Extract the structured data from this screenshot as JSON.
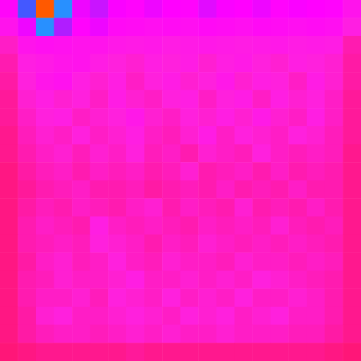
{
  "chart_data": {
    "type": "heatmap",
    "tick_labels": false,
    "zlim": [
      0,
      1
    ],
    "cells": [
      [
        0.26,
        0.45,
        0.95,
        0.5,
        0.3,
        0.33,
        0.29,
        0.27,
        0.3,
        0.28,
        0.27,
        0.31,
        0.29,
        0.28,
        0.3,
        0.27,
        0.29,
        0.28,
        0.27,
        0.2
      ],
      [
        0.2,
        0.3,
        0.5,
        0.35,
        0.27,
        0.3,
        0.24,
        0.23,
        0.22,
        0.23,
        0.22,
        0.24,
        0.23,
        0.22,
        0.24,
        0.23,
        0.22,
        0.23,
        0.22,
        0.15
      ],
      [
        0.12,
        0.2,
        0.22,
        0.21,
        0.2,
        0.2,
        0.18,
        0.17,
        0.18,
        0.16,
        0.17,
        0.18,
        0.17,
        0.16,
        0.17,
        0.18,
        0.16,
        0.17,
        0.16,
        0.1
      ],
      [
        0.1,
        0.15,
        0.17,
        0.19,
        0.2,
        0.16,
        0.14,
        0.13,
        0.15,
        0.14,
        0.16,
        0.13,
        0.15,
        0.17,
        0.14,
        0.13,
        0.15,
        0.14,
        0.13,
        0.09
      ],
      [
        0.09,
        0.14,
        0.19,
        0.21,
        0.15,
        0.13,
        0.15,
        0.12,
        0.14,
        0.16,
        0.13,
        0.14,
        0.18,
        0.13,
        0.15,
        0.14,
        0.12,
        0.16,
        0.13,
        0.09
      ],
      [
        0.08,
        0.13,
        0.15,
        0.13,
        0.14,
        0.12,
        0.16,
        0.13,
        0.12,
        0.14,
        0.15,
        0.12,
        0.14,
        0.16,
        0.12,
        0.15,
        0.13,
        0.14,
        0.12,
        0.08
      ],
      [
        0.08,
        0.12,
        0.14,
        0.15,
        0.12,
        0.13,
        0.14,
        0.18,
        0.13,
        0.12,
        0.14,
        0.13,
        0.15,
        0.13,
        0.17,
        0.13,
        0.12,
        0.15,
        0.12,
        0.08
      ],
      [
        0.07,
        0.11,
        0.13,
        0.12,
        0.14,
        0.12,
        0.13,
        0.15,
        0.12,
        0.11,
        0.13,
        0.16,
        0.12,
        0.14,
        0.13,
        0.12,
        0.14,
        0.13,
        0.11,
        0.08
      ],
      [
        0.07,
        0.1,
        0.12,
        0.13,
        0.11,
        0.13,
        0.12,
        0.14,
        0.11,
        0.12,
        0.1,
        0.13,
        0.12,
        0.11,
        0.14,
        0.12,
        0.11,
        0.12,
        0.11,
        0.07
      ],
      [
        0.06,
        0.09,
        0.11,
        0.12,
        0.1,
        0.12,
        0.11,
        0.12,
        0.1,
        0.11,
        0.13,
        0.1,
        0.11,
        0.12,
        0.1,
        0.12,
        0.1,
        0.11,
        0.1,
        0.07
      ],
      [
        0.06,
        0.08,
        0.1,
        0.11,
        0.12,
        0.1,
        0.1,
        0.11,
        0.09,
        0.1,
        0.11,
        0.1,
        0.12,
        0.1,
        0.11,
        0.1,
        0.12,
        0.1,
        0.1,
        0.07
      ],
      [
        0.06,
        0.09,
        0.11,
        0.1,
        0.12,
        0.11,
        0.1,
        0.12,
        0.13,
        0.1,
        0.12,
        0.11,
        0.1,
        0.13,
        0.1,
        0.11,
        0.1,
        0.12,
        0.1,
        0.07
      ],
      [
        0.06,
        0.1,
        0.12,
        0.11,
        0.1,
        0.15,
        0.12,
        0.11,
        0.12,
        0.11,
        0.1,
        0.12,
        0.11,
        0.12,
        0.11,
        0.13,
        0.11,
        0.1,
        0.11,
        0.07
      ],
      [
        0.06,
        0.1,
        0.11,
        0.12,
        0.11,
        0.14,
        0.13,
        0.12,
        0.1,
        0.12,
        0.11,
        0.13,
        0.12,
        0.11,
        0.12,
        0.11,
        0.12,
        0.11,
        0.1,
        0.07
      ],
      [
        0.06,
        0.09,
        0.12,
        0.13,
        0.11,
        0.12,
        0.14,
        0.12,
        0.11,
        0.13,
        0.12,
        0.12,
        0.11,
        0.13,
        0.12,
        0.12,
        0.11,
        0.12,
        0.11,
        0.07
      ],
      [
        0.06,
        0.1,
        0.11,
        0.13,
        0.12,
        0.12,
        0.13,
        0.15,
        0.12,
        0.12,
        0.13,
        0.12,
        0.13,
        0.12,
        0.14,
        0.13,
        0.12,
        0.11,
        0.1,
        0.07
      ],
      [
        0.06,
        0.1,
        0.12,
        0.12,
        0.13,
        0.11,
        0.14,
        0.13,
        0.12,
        0.14,
        0.12,
        0.13,
        0.12,
        0.14,
        0.12,
        0.12,
        0.13,
        0.12,
        0.1,
        0.07
      ],
      [
        0.06,
        0.09,
        0.13,
        0.14,
        0.12,
        0.12,
        0.13,
        0.14,
        0.13,
        0.12,
        0.14,
        0.13,
        0.14,
        0.12,
        0.13,
        0.14,
        0.12,
        0.12,
        0.1,
        0.07
      ],
      [
        0.06,
        0.09,
        0.11,
        0.12,
        0.12,
        0.11,
        0.12,
        0.13,
        0.12,
        0.13,
        0.12,
        0.12,
        0.13,
        0.12,
        0.12,
        0.12,
        0.11,
        0.11,
        0.09,
        0.07
      ],
      [
        0.05,
        0.06,
        0.07,
        0.07,
        0.07,
        0.07,
        0.07,
        0.08,
        0.07,
        0.07,
        0.07,
        0.07,
        0.07,
        0.07,
        0.07,
        0.07,
        0.07,
        0.07,
        0.06,
        0.05
      ]
    ]
  }
}
